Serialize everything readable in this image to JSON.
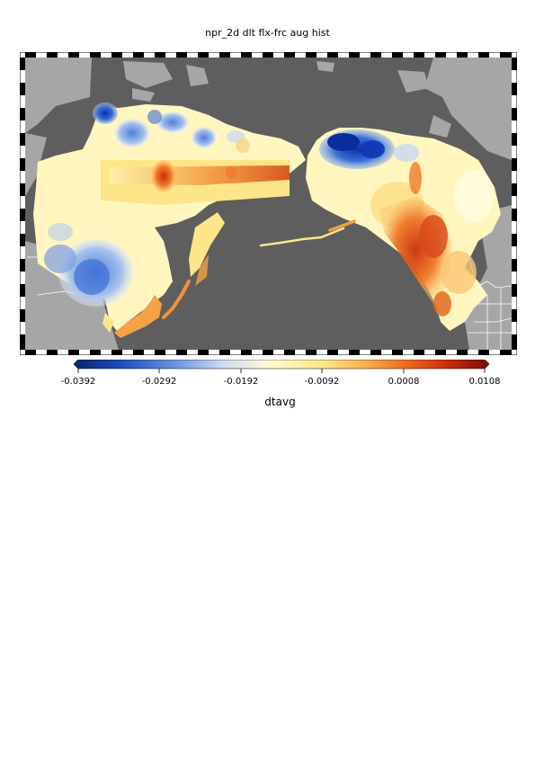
{
  "title": "npr_2d dlt flx-frc aug hist",
  "colorbar": {
    "label": "dtavg",
    "ticks": [
      "-0.0392",
      "-0.0292",
      "-0.0192",
      "-0.0092",
      "0.0008",
      "0.0108"
    ],
    "min": -0.0392,
    "max": 0.0108,
    "colors": [
      "#08226b",
      "#1f4fc4",
      "#6f97e0",
      "#cfdcf3",
      "#fffbd0",
      "#fde68a",
      "#fbb04e",
      "#f06a1f",
      "#cc2a0a",
      "#7a0b04"
    ]
  },
  "colors": {
    "ocean": "#5e5e5e",
    "land": "#a6a6a6",
    "border": "#ffffff"
  }
}
